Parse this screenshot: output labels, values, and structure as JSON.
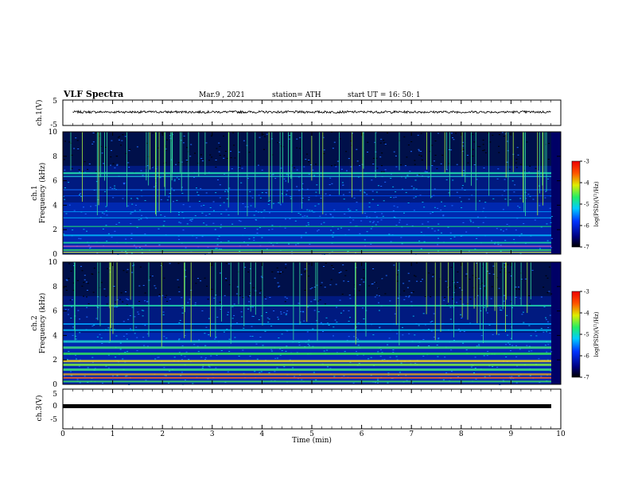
{
  "header": {
    "title": "VLF Spectra",
    "date": "Mar.9 , 2021",
    "station": "station= ATH",
    "start": "start UT = 16: 50: 1"
  },
  "x_axis": {
    "label": "Time (min)",
    "range": [
      0,
      10
    ],
    "ticks": [
      "0",
      "1",
      "2",
      "3",
      "4",
      "5",
      "6",
      "7",
      "8",
      "9",
      "10"
    ]
  },
  "chart_data": [
    {
      "type": "line",
      "ylabel": "ch.1(V)",
      "ylim": [
        -5,
        5
      ],
      "yticks": [
        "5",
        "-5"
      ],
      "xlim": [
        0,
        10
      ],
      "x": [
        0.2,
        9.8
      ],
      "y": [
        0.3,
        0.3
      ],
      "note_level": 0.3
    },
    {
      "type": "heatmap",
      "ylabel": [
        "ch.1",
        "Frequency (kHz)"
      ],
      "ylim": [
        0,
        10
      ],
      "yticks": [
        "0",
        "2",
        "4",
        "6",
        "8",
        "10"
      ],
      "colorbar": {
        "label": "log(PSD)(V²/Hz)",
        "ticks": [
          "-3",
          "-4",
          "-5",
          "-6",
          "-7"
        ],
        "range": [
          -7,
          -3
        ]
      }
    },
    {
      "type": "heatmap",
      "ylabel": [
        "ch.2",
        "Frequency (kHz)"
      ],
      "ylim": [
        0,
        10
      ],
      "yticks": [
        "0",
        "2",
        "4",
        "6",
        "8",
        "10"
      ],
      "colorbar": {
        "label": "log(PSD)(V²/Hz)",
        "ticks": [
          "-3",
          "-4",
          "-5",
          "-6",
          "-7"
        ],
        "range": [
          -7,
          -3
        ]
      }
    },
    {
      "type": "line",
      "ylabel": "ch.3(V)",
      "ylim": [
        -5,
        5
      ],
      "yticks": [
        "5",
        "0",
        "-5"
      ],
      "xlim": [
        0,
        10
      ],
      "x": [
        0.2,
        9.8
      ],
      "y": [
        0.0,
        0.0
      ]
    }
  ]
}
